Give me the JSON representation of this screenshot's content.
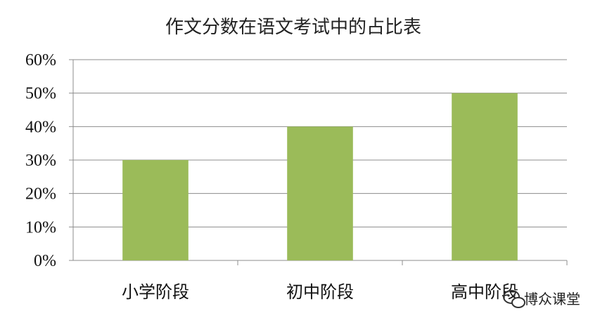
{
  "chart_data": {
    "type": "bar",
    "title": "作文分数在语文考试中的占比表",
    "categories": [
      "小学阶段",
      "初中阶段",
      "高中阶段"
    ],
    "values": [
      30,
      40,
      50
    ],
    "ylim": [
      0,
      60
    ],
    "yticks": [
      "0%",
      "10%",
      "20%",
      "30%",
      "40%",
      "50%",
      "60%"
    ],
    "grid": true,
    "legend": "none",
    "bar_color": "#9bbb59"
  },
  "watermark": {
    "text": "博众课堂",
    "icon": "wechat-icon"
  }
}
